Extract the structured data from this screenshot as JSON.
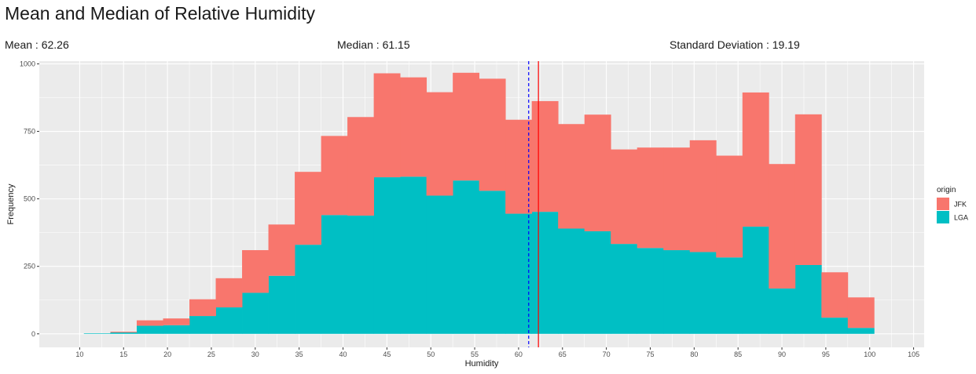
{
  "header": {
    "title": "Mean and Median of Relative Humidity",
    "mean_text": "Mean : 62.26",
    "median_text": "Median : 61.15",
    "sd_text": "Standard Deviation : 19.19"
  },
  "chart_data": {
    "type": "bar",
    "subtype": "stacked-histogram",
    "title": "Mean and Median of Relative Humidity",
    "xlabel": "Humidity",
    "ylabel": "Frequency",
    "xlim": [
      5.4,
      106.2
    ],
    "ylim": [
      -50,
      1010
    ],
    "x_ticks": [
      10,
      15,
      20,
      25,
      30,
      35,
      40,
      45,
      50,
      55,
      60,
      65,
      70,
      75,
      80,
      85,
      90,
      95,
      100,
      105
    ],
    "y_ticks": [
      0,
      250,
      500,
      750,
      1000
    ],
    "grid": true,
    "legend": {
      "title": "origin",
      "position": "right",
      "entries": [
        "JFK",
        "LGA"
      ]
    },
    "colors": {
      "JFK": "#F8766D",
      "LGA": "#00BFC4",
      "mean_line": "#FF0000",
      "median_line": "#0000FF",
      "panel": "#EBEBEB",
      "grid": "#FFFFFF"
    },
    "bin_edges": [
      10.48,
      13.5,
      16.5,
      19.5,
      22.5,
      25.5,
      28.5,
      31.5,
      34.5,
      37.5,
      40.5,
      43.5,
      46.5,
      49.5,
      52.5,
      55.5,
      58.5,
      61.5,
      64.5,
      67.5,
      70.5,
      73.5,
      76.5,
      79.5,
      82.5,
      85.5,
      88.5,
      91.5,
      94.5,
      97.5,
      100.5
    ],
    "series": [
      {
        "name": "LGA",
        "values": [
          2,
          5,
          30,
          32,
          66,
          98,
          152,
          215,
          330,
          440,
          438,
          580,
          582,
          512,
          568,
          530,
          445,
          452,
          390,
          380,
          333,
          318,
          310,
          303,
          283,
          397,
          168,
          255,
          60,
          22
        ]
      },
      {
        "name": "JFK",
        "values": [
          0,
          3,
          20,
          25,
          62,
          108,
          158,
          190,
          270,
          293,
          365,
          385,
          368,
          383,
          399,
          415,
          348,
          410,
          387,
          432,
          350,
          372,
          380,
          414,
          377,
          497,
          461,
          558,
          168,
          113
        ]
      }
    ],
    "vlines": [
      {
        "name": "mean",
        "x": 62.26,
        "style": "solid",
        "color": "#FF0000"
      },
      {
        "name": "median",
        "x": 61.15,
        "style": "dashed",
        "color": "#0000FF"
      }
    ]
  }
}
